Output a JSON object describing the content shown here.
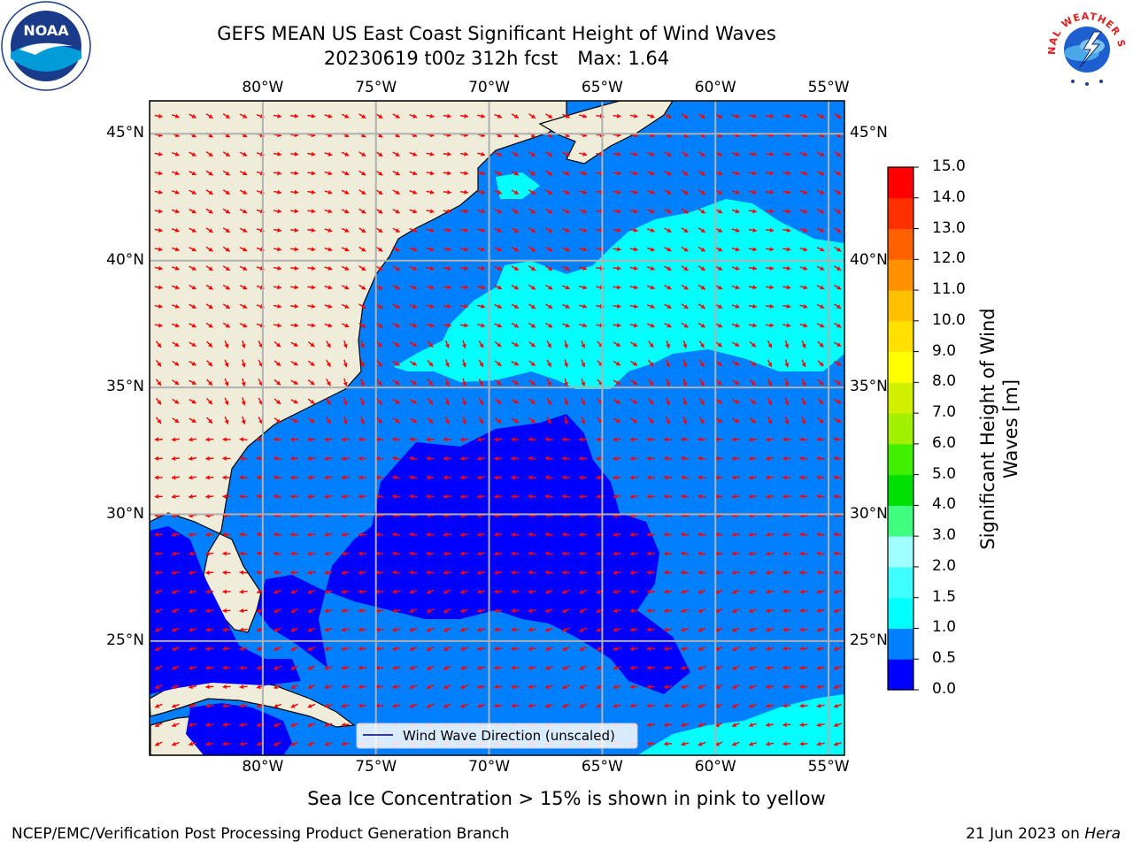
{
  "title": {
    "line1": "GEFS MEAN US East Coast Significant Height of Wind Waves",
    "line2": "20230619 t00z 312h fcst",
    "max_text": "Max: 1.64"
  },
  "logos": {
    "left": {
      "text": "NOAA",
      "icon": "noaa-logo"
    },
    "right": {
      "text": "NATIONAL WEATHER SERVICE",
      "icon": "nws-logo"
    }
  },
  "map": {
    "projection": "plate carree",
    "lon_range": [
      -85,
      -54.3
    ],
    "lat_range": [
      20.5,
      46.3
    ],
    "lon_ticks": [
      "80°W",
      "75°W",
      "70°W",
      "65°W",
      "60°W",
      "55°W"
    ],
    "lat_ticks": [
      "45°N",
      "40°N",
      "35°N",
      "30°N",
      "25°N"
    ],
    "land_color": "#efedda",
    "grid": true,
    "legend": {
      "label": "Wind Wave Direction (unscaled)",
      "placement": "bottom-center"
    },
    "arrow_color": "#ff0000"
  },
  "colorbar": {
    "label_line1": "Significant Height of Wind",
    "label_line2": "Waves [m]",
    "ticks": [
      "0.0",
      "0.5",
      "1.0",
      "1.5",
      "2.0",
      "3.0",
      "4.0",
      "5.0",
      "6.0",
      "7.0",
      "8.0",
      "9.0",
      "10.0",
      "11.0",
      "12.0",
      "13.0",
      "14.0",
      "15.0"
    ],
    "colors": [
      "#0000ff",
      "#0080ff",
      "#00ffff",
      "#40ffff",
      "#a0ffff",
      "#40ff80",
      "#00e000",
      "#40f000",
      "#a0f000",
      "#d0f000",
      "#ffff00",
      "#ffe000",
      "#ffc000",
      "#ff9000",
      "#ff6000",
      "#ff3000",
      "#ff0000"
    ]
  },
  "footnote": "Sea Ice Concentration > 15% is shown in pink to yellow",
  "footer": {
    "left": "NCEP/EMC/Verification Post Processing Product Generation Branch",
    "right_date": "21 Jun 2023 on",
    "right_host": "Hera"
  }
}
